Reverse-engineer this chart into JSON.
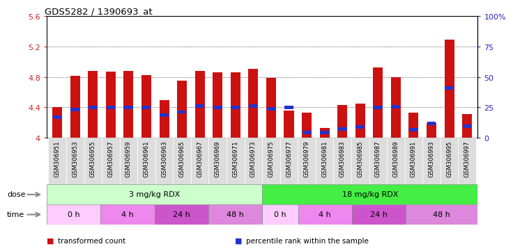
{
  "title": "GDS5282 / 1390693_at",
  "samples": [
    "GSM306951",
    "GSM306953",
    "GSM306955",
    "GSM306957",
    "GSM306959",
    "GSM306961",
    "GSM306963",
    "GSM306965",
    "GSM306967",
    "GSM306969",
    "GSM306971",
    "GSM306973",
    "GSM306975",
    "GSM306977",
    "GSM306979",
    "GSM306981",
    "GSM306983",
    "GSM306985",
    "GSM306987",
    "GSM306989",
    "GSM306991",
    "GSM306993",
    "GSM306995",
    "GSM306997"
  ],
  "transformed_count": [
    4.4,
    4.82,
    4.88,
    4.87,
    4.88,
    4.83,
    4.5,
    4.75,
    4.88,
    4.86,
    4.86,
    4.91,
    4.79,
    4.36,
    4.33,
    4.13,
    4.43,
    4.45,
    4.93,
    4.8,
    4.33,
    4.19,
    5.29,
    4.31
  ],
  "percentile_rank": [
    4.27,
    4.37,
    4.4,
    4.4,
    4.4,
    4.4,
    4.3,
    4.34,
    4.42,
    4.4,
    4.4,
    4.42,
    4.38,
    4.4,
    4.07,
    4.07,
    4.12,
    4.14,
    4.4,
    4.41,
    4.11,
    4.19,
    4.66,
    4.15
  ],
  "ylim": [
    4.0,
    5.6
  ],
  "yticks": [
    4.0,
    4.4,
    4.8,
    5.2,
    5.6
  ],
  "ytick_labels_left": [
    "4",
    "4.4",
    "4.8",
    "5.2",
    "5.6"
  ],
  "right_axis_ticks": [
    0,
    25,
    50,
    75,
    100
  ],
  "right_axis_labels": [
    "0",
    "25",
    "50",
    "75",
    "100%"
  ],
  "bar_color": "#cc1111",
  "dot_color": "#2233cc",
  "bar_width": 0.55,
  "dose_groups": [
    {
      "label": "3 mg/kg RDX",
      "start": 0,
      "end": 12,
      "color": "#ccffcc"
    },
    {
      "label": "18 mg/kg RDX",
      "start": 12,
      "end": 24,
      "color": "#44ee44"
    }
  ],
  "time_groups": [
    {
      "label": "0 h",
      "start": 0,
      "end": 3,
      "color": "#ffccff"
    },
    {
      "label": "4 h",
      "start": 3,
      "end": 6,
      "color": "#ee88ee"
    },
    {
      "label": "24 h",
      "start": 6,
      "end": 9,
      "color": "#cc55cc"
    },
    {
      "label": "48 h",
      "start": 9,
      "end": 12,
      "color": "#dd88dd"
    },
    {
      "label": "0 h",
      "start": 12,
      "end": 14,
      "color": "#ffccff"
    },
    {
      "label": "4 h",
      "start": 14,
      "end": 17,
      "color": "#ee88ee"
    },
    {
      "label": "24 h",
      "start": 17,
      "end": 20,
      "color": "#cc55cc"
    },
    {
      "label": "48 h",
      "start": 20,
      "end": 24,
      "color": "#dd88dd"
    }
  ],
  "legend_items": [
    {
      "label": "transformed count",
      "color": "#cc1111"
    },
    {
      "label": "percentile rank within the sample",
      "color": "#2233cc"
    }
  ],
  "grid_color": "#000000",
  "bg_color": "#ffffff",
  "ylabel_color": "#cc2222",
  "right_ylabel_color": "#2222cc",
  "xtick_bg": "#dddddd"
}
